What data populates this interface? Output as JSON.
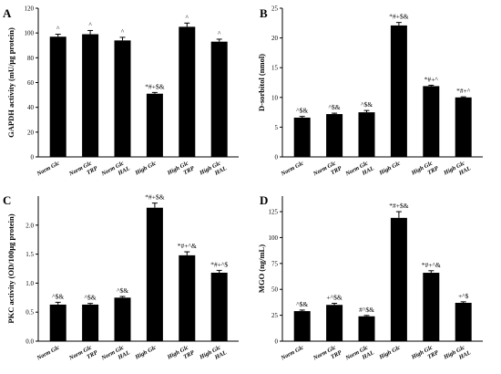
{
  "chart_data": [
    {
      "id": "A",
      "panel_label": "A",
      "type": "bar",
      "categories": [
        [
          "Norm Glc"
        ],
        [
          "Norm Glc",
          "TRP"
        ],
        [
          "Norm Glc",
          "HAL"
        ],
        [
          "High Glc"
        ],
        [
          "High Glc",
          "TRP"
        ],
        [
          "High Glc",
          "HAL"
        ]
      ],
      "values": [
        97,
        99,
        94,
        51,
        105,
        93
      ],
      "errors": [
        2,
        3,
        2.5,
        1,
        3,
        2
      ],
      "annotations": [
        "^",
        "^",
        "^",
        "*#+$&",
        "^",
        "^"
      ],
      "ylabel": "GAPDH activity (mU/µg protein)",
      "ylim": [
        0,
        120
      ],
      "yticks": [
        0,
        20,
        40,
        60,
        80,
        100,
        120
      ]
    },
    {
      "id": "B",
      "panel_label": "B",
      "type": "bar",
      "categories": [
        [
          "Norm Glc"
        ],
        [
          "Norm Glc",
          "TRP"
        ],
        [
          "Norm Glc",
          "HAL"
        ],
        [
          "High Glc"
        ],
        [
          "High Glc",
          "TRP"
        ],
        [
          "High Glc",
          "HAL"
        ]
      ],
      "values": [
        6.6,
        7.2,
        7.5,
        22.1,
        11.9,
        10.0
      ],
      "errors": [
        0.2,
        0.15,
        0.3,
        0.5,
        0.15,
        0.1
      ],
      "annotations": [
        "^$&",
        "^$&",
        "^$&",
        "*#+$&",
        "*#+^",
        "*#+^"
      ],
      "ylabel": "D-sorbitol (nmol)",
      "ylim": [
        0,
        25
      ],
      "yticks": [
        0,
        5,
        10,
        15,
        20,
        25
      ]
    },
    {
      "id": "C",
      "panel_label": "C",
      "type": "bar",
      "categories": [
        [
          "Norm Glc"
        ],
        [
          "Norm Glc",
          "TRP"
        ],
        [
          "Norm Glc",
          "HAL"
        ],
        [
          "High Glc"
        ],
        [
          "High Glc",
          "TRP"
        ],
        [
          "High Glc",
          "HAL"
        ]
      ],
      "values": [
        0.63,
        0.63,
        0.75,
        2.3,
        1.48,
        1.18
      ],
      "errors": [
        0.04,
        0.02,
        0.02,
        0.08,
        0.06,
        0.04
      ],
      "annotations": [
        "^$&",
        "^$&",
        "^$&",
        "*#+$&",
        "*#+^&",
        "*#+^$"
      ],
      "ylabel": "PKC activity (OD/100µg protein)",
      "ylim": [
        0,
        2.5
      ],
      "yticks": [
        0,
        0.5,
        1.0,
        1.5,
        2.0
      ]
    },
    {
      "id": "D",
      "panel_label": "D",
      "type": "bar",
      "categories": [
        [
          "Norm Glc"
        ],
        [
          "Norm Glc",
          "TRP"
        ],
        [
          "Norm Glc",
          "HAL"
        ],
        [
          "High Glc"
        ],
        [
          "High Glc",
          "TRP"
        ],
        [
          "High Glc",
          "HAL"
        ]
      ],
      "values": [
        29,
        35,
        24,
        119,
        66,
        37
      ],
      "errors": [
        1,
        1.5,
        0.8,
        6,
        2,
        1
      ],
      "annotations": [
        "^$&",
        "+^$&",
        "#^$&",
        "*#+$&",
        "*#+^&",
        "+^$"
      ],
      "ylabel": "MGO (ng/mL)",
      "ylim": [
        0,
        140
      ],
      "yticks": [
        0,
        25,
        50,
        75,
        100,
        125
      ]
    }
  ]
}
